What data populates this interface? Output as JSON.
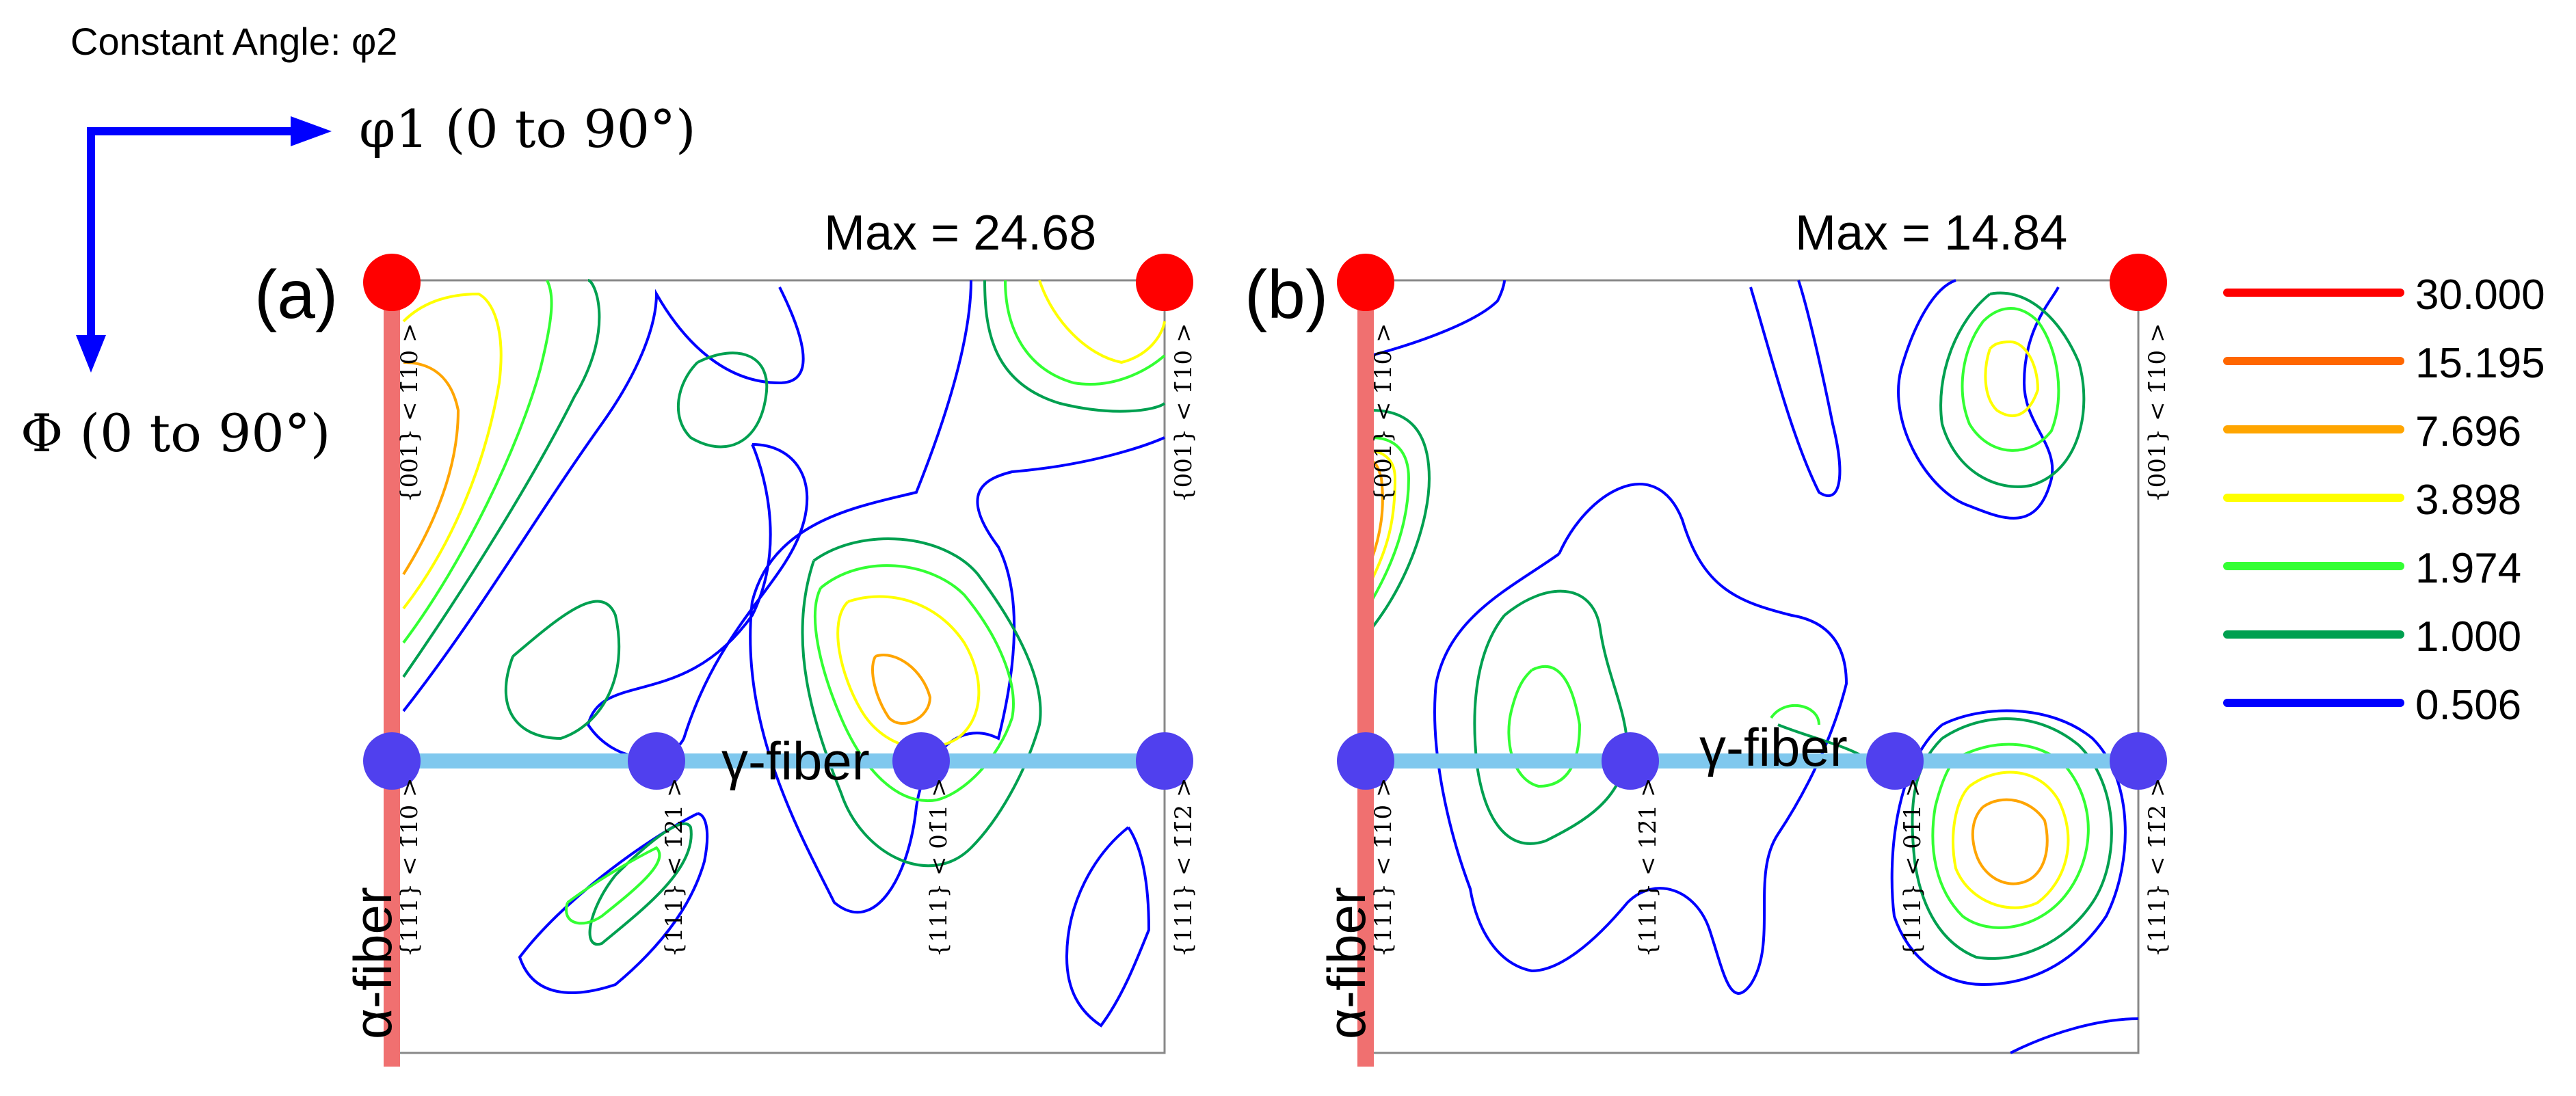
{
  "header": {
    "constant_angle": "Constant Angle: φ2",
    "phi1_label": "φ1 (0 to 90°)",
    "Phi_label": "Φ (0 to 90°)"
  },
  "panels": [
    {
      "tag": "(a)",
      "max_label": "Max = 24.68"
    },
    {
      "tag": "(b)",
      "max_label": "Max = 14.84"
    }
  ],
  "fibers": {
    "alpha": "α-fiber",
    "gamma": "γ-fiber"
  },
  "orientations": {
    "top_left": "{001} < 1̄10 >",
    "top_right": "{001} < 1̄10 >",
    "b1": "{111} < 1̄10 >",
    "b2": "{111} < 1̄21 >",
    "b3": "{111} < 01̄1 >",
    "b4": "{111} < 1̄1̄2 >",
    "pb1": "{111} < 1̄10 >",
    "pb2": "{111} < 12̄1 >",
    "pb3": "{111} < 01̄1 >",
    "pb4": "{111} < 1̄1̄2 >"
  },
  "legend": [
    {
      "label": "30.000",
      "color": "#ff0000"
    },
    {
      "label": "15.195",
      "color": "#ff6600"
    },
    {
      "label": "7.696",
      "color": "#ffa500"
    },
    {
      "label": "3.898",
      "color": "#ffff00"
    },
    {
      "label": "1.974",
      "color": "#33ff33"
    },
    {
      "label": "1.000",
      "color": "#00a050"
    },
    {
      "label": "0.506",
      "color": "#0000ff"
    }
  ],
  "colors": {
    "axis_arrow": "#0000ff",
    "alpha_fiber": "#f07070",
    "gamma_fiber": "#7fc8ee",
    "marker_red": "#ff0000",
    "marker_blue": "#5040ee"
  }
}
